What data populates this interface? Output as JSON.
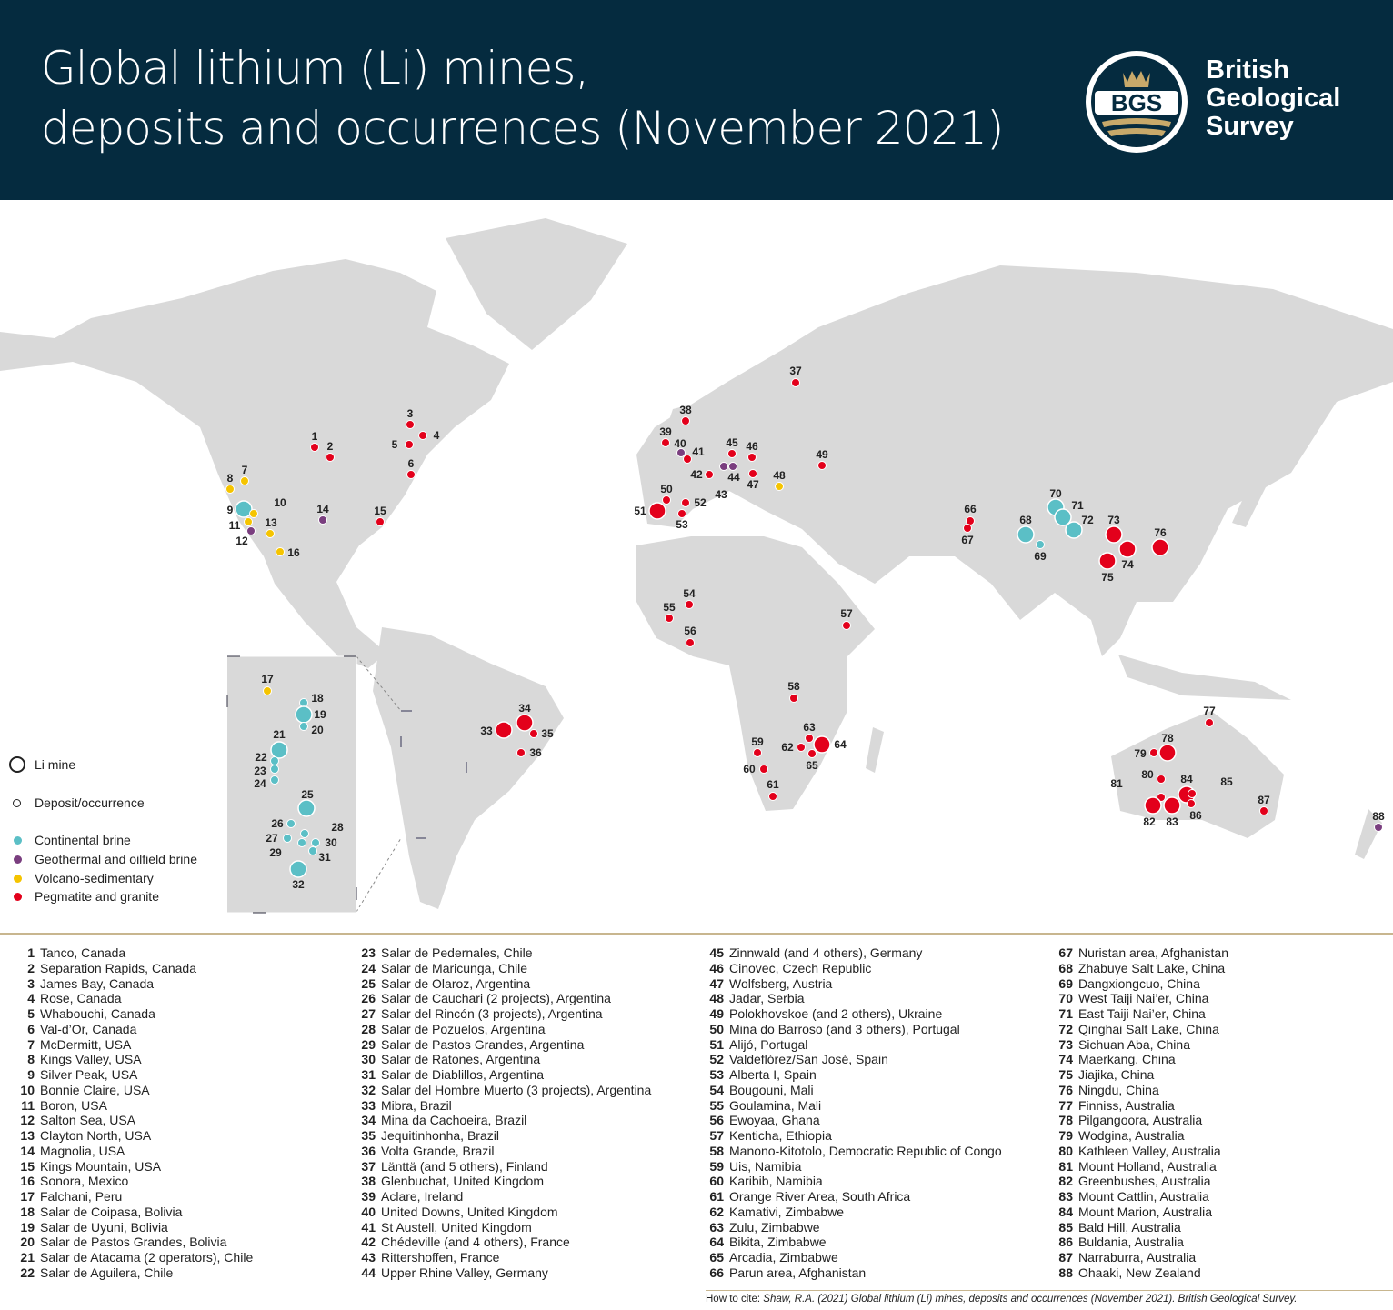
{
  "header": {
    "title_line1": "Global lithium (Li) mines,",
    "title_line2": "deposits and occurrences (November 2021)",
    "logo_text": "BGS",
    "org_line1": "British",
    "org_line2": "Geological",
    "org_line3": "Survey",
    "background": "#052b3f"
  },
  "legend": {
    "mine": "Li mine",
    "deposit": "Deposit/occurrence",
    "types": [
      {
        "key": "c",
        "label": "Continental brine",
        "color": "#5bbfc6"
      },
      {
        "key": "g",
        "label": "Geothermal and oilfield brine",
        "color": "#7a3e7f"
      },
      {
        "key": "v",
        "label": "Volcano-sedimentary",
        "color": "#f5c400"
      },
      {
        "key": "p",
        "label": "Pegmatite and granite",
        "color": "#e3001b"
      }
    ]
  },
  "sites": [
    {
      "n": "1",
      "name": "Tanco, Canada"
    },
    {
      "n": "2",
      "name": "Separation Rapids, Canada"
    },
    {
      "n": "3",
      "name": "James Bay, Canada"
    },
    {
      "n": "4",
      "name": "Rose, Canada"
    },
    {
      "n": "5",
      "name": "Whabouchi, Canada"
    },
    {
      "n": "6",
      "name": "Val-d’Or, Canada"
    },
    {
      "n": "7",
      "name": "McDermitt, USA"
    },
    {
      "n": "8",
      "name": "Kings Valley, USA"
    },
    {
      "n": "9",
      "name": "Silver Peak, USA"
    },
    {
      "n": "10",
      "name": "Bonnie Claire, USA"
    },
    {
      "n": "11",
      "name": "Boron, USA"
    },
    {
      "n": "12",
      "name": "Salton Sea, USA"
    },
    {
      "n": "13",
      "name": "Clayton North, USA"
    },
    {
      "n": "14",
      "name": "Magnolia, USA"
    },
    {
      "n": "15",
      "name": "Kings Mountain, USA"
    },
    {
      "n": "16",
      "name": "Sonora, Mexico"
    },
    {
      "n": "17",
      "name": "Falchani, Peru"
    },
    {
      "n": "18",
      "name": "Salar de Coipasa, Bolivia"
    },
    {
      "n": "19",
      "name": "Salar de Uyuni, Bolivia"
    },
    {
      "n": "20",
      "name": "Salar de Pastos Grandes, Bolivia"
    },
    {
      "n": "21",
      "name": "Salar de Atacama (2 operators), Chile"
    },
    {
      "n": "22",
      "name": "Salar de Aguilera, Chile"
    },
    {
      "n": "23",
      "name": "Salar de Pedernales, Chile"
    },
    {
      "n": "24",
      "name": "Salar de Maricunga, Chile"
    },
    {
      "n": "25",
      "name": "Salar de Olaroz, Argentina"
    },
    {
      "n": "26",
      "name": "Salar de Cauchari (2 projects), Argentina"
    },
    {
      "n": "27",
      "name": "Salar del Rincón (3 projects), Argentina"
    },
    {
      "n": "28",
      "name": "Salar de Pozuelos, Argentina"
    },
    {
      "n": "29",
      "name": "Salar de Pastos Grandes, Argentina"
    },
    {
      "n": "30",
      "name": "Salar de Ratones, Argentina"
    },
    {
      "n": "31",
      "name": "Salar de Diablillos, Argentina"
    },
    {
      "n": "32",
      "name": "Salar del Hombre Muerto (3 projects), Argentina"
    },
    {
      "n": "33",
      "name": "Mibra, Brazil"
    },
    {
      "n": "34",
      "name": "Mina da Cachoeira, Brazil"
    },
    {
      "n": "35",
      "name": "Jequitinhonha, Brazil"
    },
    {
      "n": "36",
      "name": "Volta Grande, Brazil"
    },
    {
      "n": "37",
      "name": "Länttä (and 5 others), Finland"
    },
    {
      "n": "38",
      "name": "Glenbuchat, United Kingdom"
    },
    {
      "n": "39",
      "name": "Aclare, Ireland"
    },
    {
      "n": "40",
      "name": "United Downs, United Kingdom"
    },
    {
      "n": "41",
      "name": "St Austell, United Kingdom"
    },
    {
      "n": "42",
      "name": "Chédeville (and 4 others), France"
    },
    {
      "n": "43",
      "name": "Rittershoffen, France"
    },
    {
      "n": "44",
      "name": "Upper Rhine Valley, Germany"
    },
    {
      "n": "45",
      "name": "Zinnwald (and 4 others), Germany"
    },
    {
      "n": "46",
      "name": "Cinovec, Czech Republic"
    },
    {
      "n": "47",
      "name": "Wolfsberg, Austria"
    },
    {
      "n": "48",
      "name": "Jadar, Serbia"
    },
    {
      "n": "49",
      "name": "Polokhovskoe (and 2 others), Ukraine"
    },
    {
      "n": "50",
      "name": "Mina do Barroso (and 3 others), Portugal"
    },
    {
      "n": "51",
      "name": "Alijó, Portugal"
    },
    {
      "n": "52",
      "name": "Valdeflórez/San José, Spain"
    },
    {
      "n": "53",
      "name": "Alberta I, Spain"
    },
    {
      "n": "54",
      "name": "Bougouni, Mali"
    },
    {
      "n": "55",
      "name": "Goulamina, Mali"
    },
    {
      "n": "56",
      "name": "Ewoyaa, Ghana"
    },
    {
      "n": "57",
      "name": "Kenticha, Ethiopia"
    },
    {
      "n": "58",
      "name": "Manono-Kitotolo, Democratic Republic of Congo"
    },
    {
      "n": "59",
      "name": "Uis, Namibia"
    },
    {
      "n": "60",
      "name": "Karibib, Namibia"
    },
    {
      "n": "61",
      "name": "Orange River Area, South Africa"
    },
    {
      "n": "62",
      "name": "Kamativi, Zimbabwe"
    },
    {
      "n": "63",
      "name": "Zulu, Zimbabwe"
    },
    {
      "n": "64",
      "name": "Bikita, Zimbabwe"
    },
    {
      "n": "65",
      "name": "Arcadia, Zimbabwe"
    },
    {
      "n": "66",
      "name": "Parun area, Afghanistan"
    },
    {
      "n": "67",
      "name": "Nuristan area, Afghanistan"
    },
    {
      "n": "68",
      "name": "Zhabuye Salt Lake, China"
    },
    {
      "n": "69",
      "name": "Dangxiongcuo, China"
    },
    {
      "n": "70",
      "name": "West Taiji Nai’er, China"
    },
    {
      "n": "71",
      "name": "East Taiji Nai’er, China"
    },
    {
      "n": "72",
      "name": "Qinghai Salt Lake, China"
    },
    {
      "n": "73",
      "name": "Sichuan Aba, China"
    },
    {
      "n": "74",
      "name": "Maerkang, China"
    },
    {
      "n": "75",
      "name": "Jiajika, China"
    },
    {
      "n": "76",
      "name": "Ningdu, China"
    },
    {
      "n": "77",
      "name": "Finniss, Australia"
    },
    {
      "n": "78",
      "name": "Pilgangoora, Australia"
    },
    {
      "n": "79",
      "name": "Wodgina, Australia"
    },
    {
      "n": "80",
      "name": "Kathleen Valley, Australia"
    },
    {
      "n": "81",
      "name": "Mount Holland, Australia"
    },
    {
      "n": "82",
      "name": "Greenbushes, Australia"
    },
    {
      "n": "83",
      "name": "Mount Cattlin, Australia"
    },
    {
      "n": "84",
      "name": "Mount Marion, Australia"
    },
    {
      "n": "85",
      "name": "Bald Hill, Australia"
    },
    {
      "n": "86",
      "name": "Buldania, Australia"
    },
    {
      "n": "87",
      "name": "Narraburra, Australia"
    },
    {
      "n": "88",
      "name": "Ohaaki, New Zealand"
    }
  ],
  "cite": {
    "prefix": "How to cite: ",
    "text": "Shaw, R.A. (2021) Global lithium (Li) mines, deposits and occurrences (November 2021). British Geological Survey."
  }
}
